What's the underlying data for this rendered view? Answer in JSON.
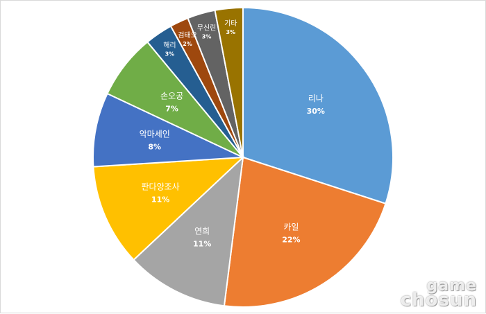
{
  "chart_data": {
    "type": "pie",
    "title": "",
    "slices": [
      {
        "label": "리나",
        "value": 30,
        "value_label": "30%",
        "color": "#5b9bd5"
      },
      {
        "label": "카일",
        "value": 22,
        "value_label": "22%",
        "color": "#ed7d31"
      },
      {
        "label": "연희",
        "value": 11,
        "value_label": "11%",
        "color": "#a5a5a5"
      },
      {
        "label": "판다양조사",
        "value": 11,
        "value_label": "11%",
        "color": "#ffc000"
      },
      {
        "label": "악마세인",
        "value": 8,
        "value_label": "8%",
        "color": "#4472c4"
      },
      {
        "label": "손오공",
        "value": 7,
        "value_label": "7%",
        "color": "#70ad47"
      },
      {
        "label": "해리",
        "value": 3,
        "value_label": "3%",
        "color": "#255e91"
      },
      {
        "label": "검태오",
        "value": 2,
        "value_label": "2%",
        "color": "#9e480e"
      },
      {
        "label": "무신린",
        "value": 3,
        "value_label": "3%",
        "color": "#636363"
      },
      {
        "label": "기타",
        "value": 3,
        "value_label": "3%",
        "color": "#997300"
      }
    ],
    "legend": "none"
  },
  "watermark": {
    "line1": "game",
    "line2": "chosun"
  }
}
